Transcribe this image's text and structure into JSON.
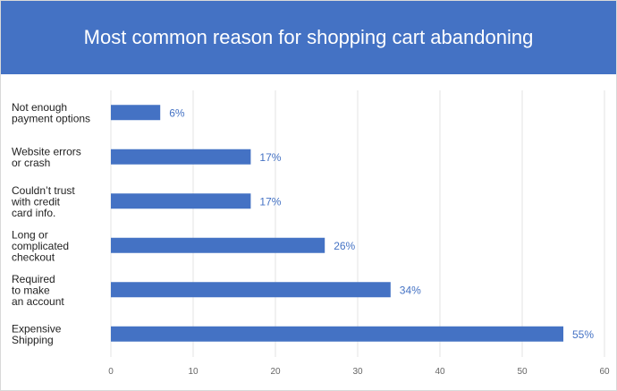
{
  "chart_data": {
    "type": "bar",
    "orientation": "horizontal",
    "title": "Most common reason for shopping cart abandoning",
    "categories": [
      [
        "Not enough",
        "payment options"
      ],
      [
        "Website errors",
        "or crash"
      ],
      [
        "Couldn’t trust",
        "with credit",
        "card info."
      ],
      [
        "Long or",
        "complicated",
        "checkout"
      ],
      [
        "Required",
        "to make",
        "an account"
      ],
      [
        "Expensive",
        "Shipping"
      ]
    ],
    "values": [
      6,
      17,
      17,
      26,
      34,
      55
    ],
    "value_labels": [
      "6%",
      "17%",
      "17%",
      "26%",
      "34%",
      "55%"
    ],
    "xlim": [
      0,
      60
    ],
    "xticks": [
      "0",
      "10",
      "20",
      "30",
      "40",
      "50",
      "60"
    ],
    "xlabel": "",
    "ylabel": "",
    "grid": "vertical",
    "legend": "none",
    "colors": {
      "header": "#4472c4",
      "bar": "#4472c4",
      "value_label": "#4472c4",
      "category_text": "#222222",
      "tick_text": "#666666",
      "gridline": "#e3e3e3"
    }
  }
}
